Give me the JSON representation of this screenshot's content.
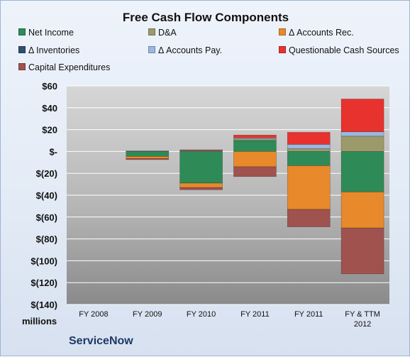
{
  "chart_data": {
    "type": "bar",
    "stacked": true,
    "title": "Free Cash Flow Components",
    "units_label": "millions",
    "company": "ServiceNow",
    "ylim": [
      -140,
      60
    ],
    "y_ticks": [
      60,
      40,
      20,
      0,
      -20,
      -40,
      -60,
      -80,
      -100,
      -120,
      -140
    ],
    "y_tick_labels": [
      "$60",
      "$40",
      "$20",
      "$-",
      "$(20)",
      "$(40)",
      "$(60)",
      "$(80)",
      "$(100)",
      "$(120)",
      "$(140)"
    ],
    "categories": [
      "FY 2008",
      "FY 2009",
      "FY 2010",
      "FY 2011",
      "FY 2011",
      "FY & TTM 2012"
    ],
    "grid": true,
    "legend_position": "top",
    "series": [
      {
        "name": "Net Income",
        "color": "#2e8b57",
        "values": [
          0,
          -4.5,
          -29,
          10,
          -13,
          -37
        ]
      },
      {
        "name": "D&A",
        "color": "#9c9a6a",
        "values": [
          0,
          0.4,
          0.5,
          1.5,
          2.5,
          14
        ]
      },
      {
        "name": "Δ Accounts Rec.",
        "color": "#e8892b",
        "values": [
          0,
          -2,
          -4,
          -14,
          -40,
          -33
        ]
      },
      {
        "name": "Δ Inventories",
        "color": "#2f4f6f",
        "values": [
          0,
          0,
          0,
          0,
          0,
          0
        ]
      },
      {
        "name": "Δ Accounts Pay.",
        "color": "#9bb7dd",
        "values": [
          0,
          0.3,
          0.5,
          1,
          4,
          4
        ]
      },
      {
        "name": "Questionable Cash Sources",
        "color": "#e8322e",
        "values": [
          0,
          0,
          0.5,
          2.5,
          11,
          30
        ]
      },
      {
        "name": "Capital Expenditures",
        "color": "#a0524f",
        "values": [
          0,
          -1,
          -2,
          -9,
          -16,
          -42
        ]
      }
    ]
  }
}
